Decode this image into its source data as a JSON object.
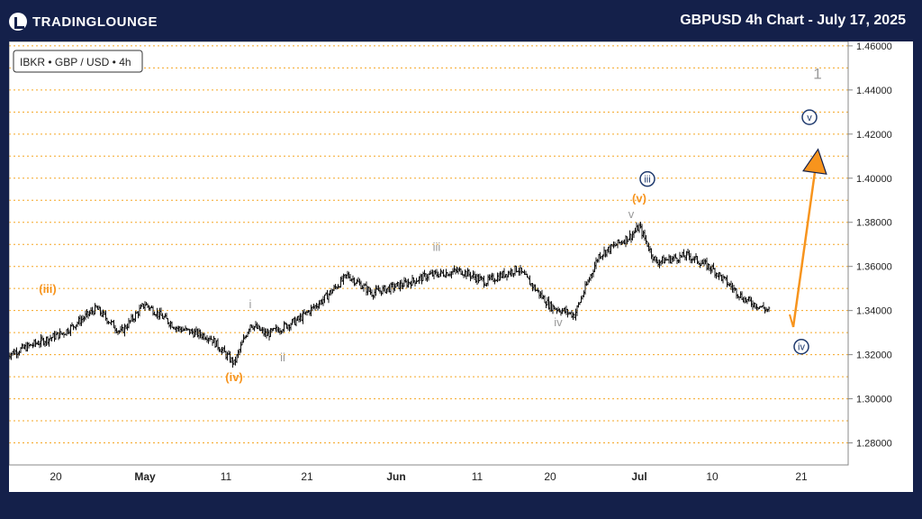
{
  "header": {
    "logo_text": "TRADINGLOUNGE",
    "title": "GBPUSD 4h Chart - July 17, 2025"
  },
  "colors": {
    "background": "#14204a",
    "orange": "#f7941d",
    "navy": "#1f3a6e",
    "gray": "#999999",
    "grid": "#f5a623"
  },
  "chart_data": {
    "type": "ohlc",
    "symbol_label": "IBKR • GBP / USD • 4h",
    "x_ticks": [
      "20",
      "May",
      "11",
      "21",
      "Jun",
      "11",
      "20",
      "Jul",
      "10",
      "21"
    ],
    "y_ticks": [
      "1.46000",
      "1.44000",
      "1.42000",
      "1.40000",
      "1.38000",
      "1.36000",
      "1.34000",
      "1.32000",
      "1.30000",
      "1.28000"
    ],
    "ylim": [
      1.27,
      1.462
    ],
    "grid": "horizontal dotted",
    "series": [
      {
        "x": "2025-04-14",
        "y": 1.32
      },
      {
        "x": "2025-04-21",
        "y": 1.33
      },
      {
        "x": "2025-04-25",
        "y": 1.341
      },
      {
        "x": "2025-04-28",
        "y": 1.33
      },
      {
        "x": "2025-05-01",
        "y": 1.343
      },
      {
        "x": "2025-05-05",
        "y": 1.332
      },
      {
        "x": "2025-05-09",
        "y": 1.328
      },
      {
        "x": "2025-05-12",
        "y": 1.316
      },
      {
        "x": "2025-05-14",
        "y": 1.334
      },
      {
        "x": "2025-05-16",
        "y": 1.329
      },
      {
        "x": "2025-05-20",
        "y": 1.336
      },
      {
        "x": "2025-05-23",
        "y": 1.345
      },
      {
        "x": "2025-05-26",
        "y": 1.356
      },
      {
        "x": "2025-05-29",
        "y": 1.348
      },
      {
        "x": "2025-06-02",
        "y": 1.352
      },
      {
        "x": "2025-06-05",
        "y": 1.356
      },
      {
        "x": "2025-06-09",
        "y": 1.358
      },
      {
        "x": "2025-06-12",
        "y": 1.353
      },
      {
        "x": "2025-06-16",
        "y": 1.359
      },
      {
        "x": "2025-06-20",
        "y": 1.342
      },
      {
        "x": "2025-06-23",
        "y": 1.338
      },
      {
        "x": "2025-06-26",
        "y": 1.365
      },
      {
        "x": "2025-06-30",
        "y": 1.374
      },
      {
        "x": "2025-07-01",
        "y": 1.378
      },
      {
        "x": "2025-07-03",
        "y": 1.362
      },
      {
        "x": "2025-07-07",
        "y": 1.365
      },
      {
        "x": "2025-07-10",
        "y": 1.359
      },
      {
        "x": "2025-07-14",
        "y": 1.345
      },
      {
        "x": "2025-07-17",
        "y": 1.34
      }
    ],
    "annotations": [
      {
        "text": "(iii)",
        "x": "2025-04-19",
        "y": 1.348,
        "color": "orange"
      },
      {
        "text": "(iv)",
        "x": "2025-05-12",
        "y": 1.308,
        "color": "orange"
      },
      {
        "text": "i",
        "x": "2025-05-14",
        "y": 1.341,
        "color": "gray"
      },
      {
        "text": "ii",
        "x": "2025-05-18",
        "y": 1.317,
        "color": "gray"
      },
      {
        "text": "iii",
        "x": "2025-06-06",
        "y": 1.367,
        "color": "gray"
      },
      {
        "text": "iv",
        "x": "2025-06-21",
        "y": 1.333,
        "color": "gray"
      },
      {
        "text": "v",
        "x": "2025-06-30",
        "y": 1.382,
        "color": "gray"
      },
      {
        "text": "(v)",
        "x": "2025-07-01",
        "y": 1.389,
        "color": "orange"
      },
      {
        "text": "iii",
        "x": "2025-07-02",
        "y": 1.398,
        "color": "navy",
        "circled": true
      },
      {
        "text": "iv",
        "x": "2025-07-21",
        "y": 1.322,
        "color": "navy",
        "circled": true
      },
      {
        "text": "v",
        "x": "2025-07-22",
        "y": 1.426,
        "color": "navy",
        "circled": true
      },
      {
        "text": "1",
        "x": "2025-07-23",
        "y": 1.445,
        "color": "gray"
      }
    ],
    "projection": [
      {
        "x": "2025-07-20",
        "y": 1.3325
      },
      {
        "x": "2025-07-23",
        "y": 1.4115
      }
    ]
  }
}
